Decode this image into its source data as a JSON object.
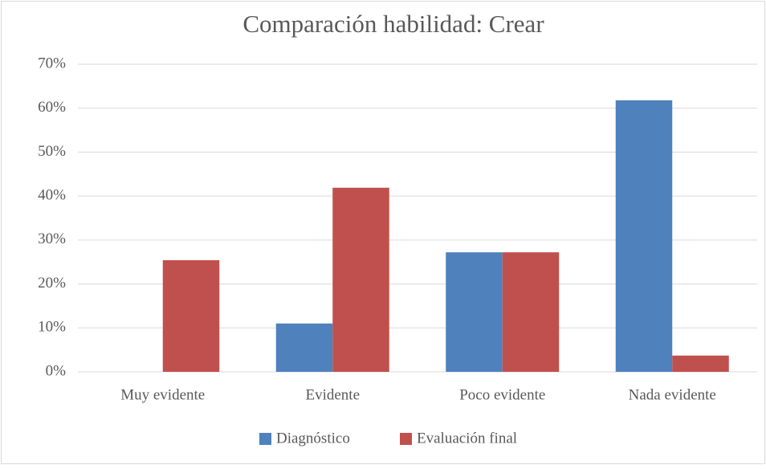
{
  "chart_data": {
    "type": "bar",
    "title": "Comparación habilidad: Crear",
    "categories": [
      "Muy evidente",
      "Evidente",
      "Poco evidente",
      "Nada evidente"
    ],
    "series": [
      {
        "name": "Diagnóstico",
        "color": "#4f81bd",
        "values": [
          0,
          11,
          27.2,
          61.8
        ]
      },
      {
        "name": "Evaluación final",
        "color": "#c0504d",
        "values": [
          25.4,
          41.9,
          27.2,
          3.7
        ]
      }
    ],
    "ylim": [
      0,
      70
    ],
    "yticks": [
      {
        "value": 0,
        "label": "0%"
      },
      {
        "value": 10,
        "label": "10%"
      },
      {
        "value": 20,
        "label": "20%"
      },
      {
        "value": 30,
        "label": "30%"
      },
      {
        "value": 40,
        "label": "40%"
      },
      {
        "value": 50,
        "label": "50%"
      },
      {
        "value": 60,
        "label": "60%"
      },
      {
        "value": 70,
        "label": "70%"
      }
    ],
    "grid": true,
    "legend": "bottom"
  }
}
